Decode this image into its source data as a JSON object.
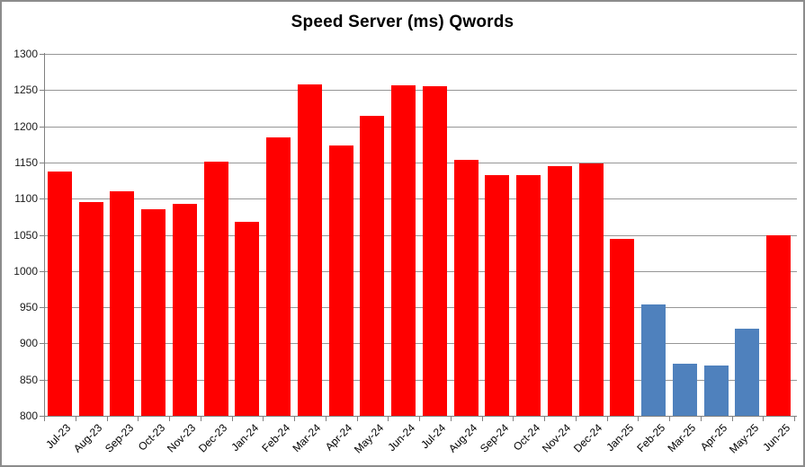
{
  "chart_data": {
    "type": "bar",
    "title": "Speed Server (ms) Qwords",
    "xlabel": "",
    "ylabel": "",
    "ylim": [
      800,
      1300
    ],
    "ytick_step": 50,
    "yticks": [
      800,
      850,
      900,
      950,
      1000,
      1050,
      1100,
      1150,
      1200,
      1250,
      1300
    ],
    "grid": "horizontal",
    "legend": "none",
    "categories": [
      "Jul-23",
      "Aug-23",
      "Sep-23",
      "Oct-23",
      "Nov-23",
      "Dec-23",
      "Jan-24",
      "Feb-24",
      "Mar-24",
      "Apr-24",
      "May-24",
      "Jun-24",
      "Jul-24",
      "Aug-24",
      "Sep-24",
      "Oct-24",
      "Nov-24",
      "Dec-24",
      "Jan-25",
      "Feb-25",
      "Mar-25",
      "Apr-25",
      "May-25",
      "Jun-25"
    ],
    "values": [
      1137,
      1095,
      1110,
      1086,
      1093,
      1151,
      1068,
      1185,
      1258,
      1174,
      1214,
      1257,
      1255,
      1154,
      1132,
      1133,
      1145,
      1149,
      1045,
      954,
      872,
      870,
      920,
      1050
    ],
    "bar_colors": [
      "#FF0000",
      "#FF0000",
      "#FF0000",
      "#FF0000",
      "#FF0000",
      "#FF0000",
      "#FF0000",
      "#FF0000",
      "#FF0000",
      "#FF0000",
      "#FF0000",
      "#FF0000",
      "#FF0000",
      "#FF0000",
      "#FF0000",
      "#FF0000",
      "#FF0000",
      "#FF0000",
      "#FF0000",
      "#4F81BD",
      "#4F81BD",
      "#4F81BD",
      "#4F81BD",
      "#FF0000"
    ],
    "colors": {
      "series_red": "#FF0000",
      "series_blue": "#4F81BD",
      "gridline": "#969696",
      "axis": "#808080",
      "text": "#000000",
      "frame_border": "#8C8C8C",
      "background": "#FFFFFF"
    }
  }
}
